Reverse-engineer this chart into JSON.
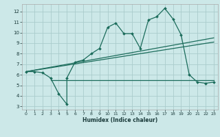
{
  "xlabel": "Humidex (Indice chaleur)",
  "bg_color": "#cce8e8",
  "grid_color": "#aacccc",
  "line_color": "#1a6b5a",
  "xlim": [
    -0.5,
    23.5
  ],
  "ylim": [
    2.7,
    12.7
  ],
  "xticks": [
    0,
    1,
    2,
    3,
    4,
    5,
    6,
    7,
    8,
    9,
    10,
    11,
    12,
    13,
    14,
    15,
    16,
    17,
    18,
    19,
    20,
    21,
    22,
    23
  ],
  "yticks": [
    3,
    4,
    5,
    6,
    7,
    8,
    9,
    10,
    11,
    12
  ],
  "line1_x": [
    0,
    1,
    2,
    3,
    4,
    5,
    5,
    6,
    7,
    8,
    9,
    10,
    11,
    12,
    13,
    14,
    15,
    16,
    17,
    18,
    19,
    20,
    21,
    22,
    23
  ],
  "line1_y": [
    6.3,
    6.3,
    6.2,
    5.7,
    4.2,
    3.2,
    5.7,
    7.2,
    7.4,
    8.0,
    8.5,
    10.5,
    10.9,
    9.9,
    9.9,
    8.5,
    11.2,
    11.5,
    12.3,
    11.3,
    9.8,
    6.0,
    5.3,
    5.2,
    5.3
  ],
  "line2_x": [
    3,
    23
  ],
  "line2_y": [
    5.5,
    5.5
  ],
  "line3_x": [
    0,
    23
  ],
  "line3_y": [
    6.3,
    9.5
  ],
  "line4_x": [
    0,
    23
  ],
  "line4_y": [
    6.3,
    9.1
  ]
}
